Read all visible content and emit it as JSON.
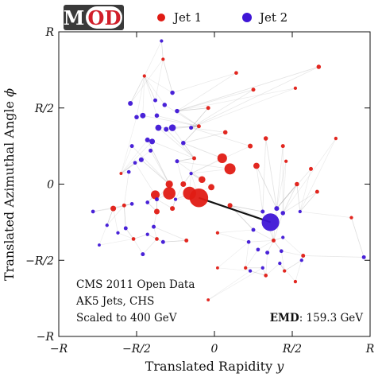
{
  "logo": {
    "letters": [
      "M",
      "O",
      "D"
    ]
  },
  "colors": {
    "jet1": "#e01b14",
    "jet2": "#3f16d6",
    "flow": "#8a8a8a",
    "logo_dark": "#3a3a3a",
    "logo_red": "#d11f2a"
  },
  "chart_data": {
    "type": "scatter",
    "title": "",
    "xlabel_prefix": "Translated Rapidity ",
    "xlabel_var": "y",
    "ylabel_prefix": "Translated Azimuthal Angle ",
    "ylabel_var": "ϕ",
    "xlim": [
      -1,
      1
    ],
    "ylim": [
      -1,
      1
    ],
    "x_tick_values": [
      -1,
      -0.5,
      0,
      0.5,
      1
    ],
    "x_tick_labels": [
      "−R",
      "−R/2",
      "0",
      "R/2",
      "R"
    ],
    "y_tick_values": [
      -1,
      -0.5,
      0,
      0.5,
      1
    ],
    "y_tick_labels": [
      "−R",
      "−R/2",
      "0",
      "R/2",
      "R"
    ],
    "legend": {
      "placement": "top",
      "entries": [
        {
          "label": "Jet 1",
          "color": "#e01b14"
        },
        {
          "label": "Jet 2",
          "color": "#3f16d6"
        }
      ]
    },
    "annotations": {
      "info_lines": [
        "CMS 2011 Open Data",
        "AK5 Jets, CHS",
        "Scaled to 400 GeV"
      ],
      "emd_label": "EMD",
      "emd_value": ": 159.3 GeV"
    },
    "series": [
      {
        "name": "Jet 1",
        "color": "#e01b14",
        "points": [
          {
            "x": -0.1,
            "y": -0.09,
            "pt": 45
          },
          {
            "x": -0.16,
            "y": -0.06,
            "pt": 22
          },
          {
            "x": -0.29,
            "y": -0.06,
            "pt": 20
          },
          {
            "x": 0.1,
            "y": 0.1,
            "pt": 16
          },
          {
            "x": 0.05,
            "y": 0.17,
            "pt": 12
          },
          {
            "x": -0.38,
            "y": -0.07,
            "pt": 10
          },
          {
            "x": -0.29,
            "y": 0.0,
            "pt": 7
          },
          {
            "x": -0.08,
            "y": 0.03,
            "pt": 6
          },
          {
            "x": -0.02,
            "y": -0.02,
            "pt": 5
          },
          {
            "x": 0.27,
            "y": 0.12,
            "pt": 5
          },
          {
            "x": -0.2,
            "y": 0.0,
            "pt": 4
          },
          {
            "x": -0.37,
            "y": -0.18,
            "pt": 4
          },
          {
            "x": -0.65,
            "y": -0.16,
            "pt": 4
          },
          {
            "x": -0.27,
            "y": -0.16,
            "pt": 3
          },
          {
            "x": 0.1,
            "y": -0.14,
            "pt": 3
          },
          {
            "x": 0.23,
            "y": 0.25,
            "pt": 3
          },
          {
            "x": 0.33,
            "y": 0.3,
            "pt": 2.5
          },
          {
            "x": 0.07,
            "y": 0.34,
            "pt": 2.5
          },
          {
            "x": -0.1,
            "y": 0.38,
            "pt": 2
          },
          {
            "x": -0.13,
            "y": 0.17,
            "pt": 2
          },
          {
            "x": 0.53,
            "y": 0.0,
            "pt": 2.5
          },
          {
            "x": 0.62,
            "y": 0.1,
            "pt": 2
          },
          {
            "x": 0.66,
            "y": -0.05,
            "pt": 2
          },
          {
            "x": 0.44,
            "y": 0.25,
            "pt": 2
          },
          {
            "x": 0.38,
            "y": -0.37,
            "pt": 2
          },
          {
            "x": 0.57,
            "y": -0.47,
            "pt": 2
          },
          {
            "x": 0.33,
            "y": -0.6,
            "pt": 1.8
          },
          {
            "x": 0.52,
            "y": -0.64,
            "pt": 1.5
          },
          {
            "x": 0.45,
            "y": -0.57,
            "pt": 1.5
          },
          {
            "x": -0.18,
            "y": -0.37,
            "pt": 2
          },
          {
            "x": -0.37,
            "y": -0.36,
            "pt": 1.8
          },
          {
            "x": -0.52,
            "y": -0.36,
            "pt": 1.8
          },
          {
            "x": -0.58,
            "y": -0.14,
            "pt": 2
          },
          {
            "x": -0.04,
            "y": 0.5,
            "pt": 2
          },
          {
            "x": 0.25,
            "y": 0.62,
            "pt": 2
          },
          {
            "x": 0.67,
            "y": 0.77,
            "pt": 2.5
          },
          {
            "x": 0.14,
            "y": 0.73,
            "pt": 1.8
          },
          {
            "x": 0.52,
            "y": 0.63,
            "pt": 1.5
          },
          {
            "x": 0.78,
            "y": 0.3,
            "pt": 1.5
          },
          {
            "x": 0.88,
            "y": -0.22,
            "pt": 1.5
          },
          {
            "x": -0.33,
            "y": 0.82,
            "pt": 1.5
          },
          {
            "x": -0.45,
            "y": 0.71,
            "pt": 1.5
          },
          {
            "x": 0.02,
            "y": -0.32,
            "pt": 1.5
          },
          {
            "x": -0.04,
            "y": -0.76,
            "pt": 1.2
          },
          {
            "x": 0.46,
            "y": 0.15,
            "pt": 1.5
          },
          {
            "x": 0.2,
            "y": -0.55,
            "pt": 1.5
          },
          {
            "x": -0.6,
            "y": 0.07,
            "pt": 1.2
          },
          {
            "x": 0.02,
            "y": -0.55,
            "pt": 1.2
          }
        ]
      },
      {
        "name": "Jet 2",
        "color": "#3f16d6",
        "points": [
          {
            "x": 0.36,
            "y": -0.25,
            "pt": 40
          },
          {
            "x": -0.27,
            "y": 0.37,
            "pt": 6
          },
          {
            "x": -0.36,
            "y": 0.37,
            "pt": 5
          },
          {
            "x": -0.46,
            "y": 0.45,
            "pt": 4
          },
          {
            "x": -0.4,
            "y": 0.28,
            "pt": 4
          },
          {
            "x": -0.43,
            "y": 0.29,
            "pt": 3
          },
          {
            "x": -0.47,
            "y": 0.16,
            "pt": 3
          },
          {
            "x": -0.54,
            "y": 0.53,
            "pt": 3
          },
          {
            "x": -0.31,
            "y": 0.36,
            "pt": 3
          },
          {
            "x": -0.37,
            "y": 0.45,
            "pt": 2.5
          },
          {
            "x": -0.24,
            "y": 0.48,
            "pt": 2.5
          },
          {
            "x": -0.32,
            "y": 0.52,
            "pt": 2.5
          },
          {
            "x": -0.2,
            "y": 0.27,
            "pt": 2.5
          },
          {
            "x": -0.5,
            "y": 0.44,
            "pt": 2.5
          },
          {
            "x": -0.27,
            "y": 0.6,
            "pt": 2.5
          },
          {
            "x": -0.24,
            "y": 0.15,
            "pt": 2
          },
          {
            "x": -0.15,
            "y": 0.37,
            "pt": 2
          },
          {
            "x": -0.38,
            "y": 0.55,
            "pt": 2
          },
          {
            "x": -0.53,
            "y": 0.25,
            "pt": 2
          },
          {
            "x": -0.41,
            "y": 0.22,
            "pt": 2
          },
          {
            "x": 0.4,
            "y": -0.16,
            "pt": 3
          },
          {
            "x": 0.44,
            "y": -0.19,
            "pt": 2.5
          },
          {
            "x": 0.25,
            "y": -0.3,
            "pt": 2
          },
          {
            "x": 0.31,
            "y": -0.18,
            "pt": 2
          },
          {
            "x": 0.34,
            "y": -0.45,
            "pt": 2
          },
          {
            "x": 0.28,
            "y": -0.43,
            "pt": 1.8
          },
          {
            "x": 0.22,
            "y": -0.38,
            "pt": 1.8
          },
          {
            "x": 0.43,
            "y": -0.44,
            "pt": 1.8
          },
          {
            "x": 0.31,
            "y": -0.55,
            "pt": 1.5
          },
          {
            "x": 0.23,
            "y": -0.57,
            "pt": 1.5
          },
          {
            "x": 0.44,
            "y": -0.35,
            "pt": 1.5
          },
          {
            "x": -0.33,
            "y": -0.38,
            "pt": 2
          },
          {
            "x": -0.39,
            "y": -0.28,
            "pt": 2
          },
          {
            "x": -0.46,
            "y": -0.46,
            "pt": 2
          },
          {
            "x": -0.57,
            "y": -0.29,
            "pt": 2
          },
          {
            "x": -0.37,
            "y": -0.1,
            "pt": 2
          },
          {
            "x": -0.53,
            "y": -0.13,
            "pt": 1.8
          },
          {
            "x": -0.43,
            "y": -0.12,
            "pt": 1.8
          },
          {
            "x": -0.55,
            "y": 0.08,
            "pt": 1.8
          },
          {
            "x": -0.15,
            "y": 0.07,
            "pt": 1.5
          },
          {
            "x": -0.34,
            "y": 0.94,
            "pt": 1.5
          },
          {
            "x": -0.51,
            "y": 0.14,
            "pt": 1.8
          },
          {
            "x": -0.78,
            "y": -0.18,
            "pt": 1.8
          },
          {
            "x": -0.43,
            "y": -0.33,
            "pt": 1.5
          },
          {
            "x": -0.62,
            "y": -0.32,
            "pt": 1.5
          },
          {
            "x": -0.69,
            "y": -0.27,
            "pt": 1.5
          },
          {
            "x": 0.96,
            "y": -0.48,
            "pt": 2
          },
          {
            "x": 0.56,
            "y": -0.5,
            "pt": 1.5
          },
          {
            "x": 0.42,
            "y": -0.52,
            "pt": 1.5
          },
          {
            "x": -0.74,
            "y": -0.4,
            "pt": 1.2
          },
          {
            "x": 0.55,
            "y": -0.18,
            "pt": 1.5
          },
          {
            "x": -0.25,
            "y": -0.1,
            "pt": 1.5
          }
        ]
      }
    ]
  }
}
